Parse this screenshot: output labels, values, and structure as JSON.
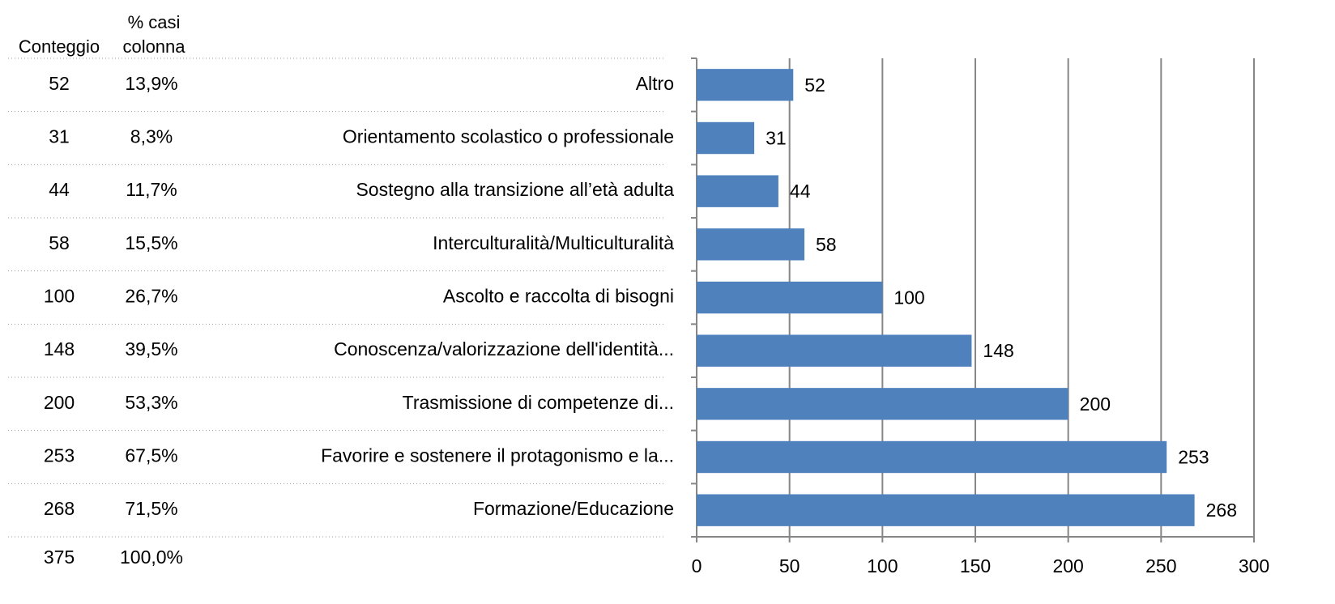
{
  "table": {
    "headers": [
      "Conteggio",
      "% casi colonna"
    ],
    "rows": [
      [
        "52",
        "13,9%"
      ],
      [
        "31",
        "8,3%"
      ],
      [
        "44",
        "11,7%"
      ],
      [
        "58",
        "15,5%"
      ],
      [
        "100",
        "26,7%"
      ],
      [
        "148",
        "39,5%"
      ],
      [
        "200",
        "53,3%"
      ],
      [
        "253",
        "67,5%"
      ],
      [
        "268",
        "71,5%"
      ],
      [
        "375",
        "100,0%"
      ]
    ]
  },
  "chart_data": {
    "type": "bar",
    "orientation": "horizontal",
    "categories": [
      "Altro",
      "Orientamento scolastico o professionale",
      "Sostegno alla transizione all’età adulta",
      "Interculturalità/Multiculturalità",
      "Ascolto e raccolta di bisogni",
      "Conoscenza/valorizzazione dell'identità...",
      "Trasmissione di competenze di...",
      "Favorire e sostenere il protagonismo e la...",
      "Formazione/Educazione"
    ],
    "values": [
      52,
      31,
      44,
      58,
      100,
      148,
      200,
      253,
      268
    ],
    "color": "#4f81bd",
    "xlim": [
      0,
      300
    ],
    "xticks": [
      0,
      50,
      100,
      150,
      200,
      250,
      300
    ],
    "grid": true
  }
}
